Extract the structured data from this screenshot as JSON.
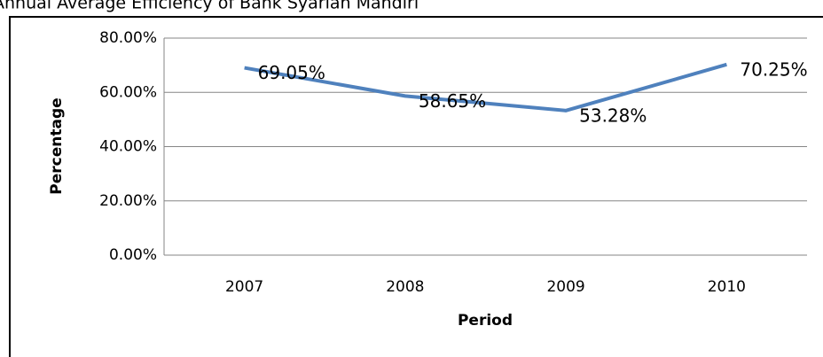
{
  "chart_data": {
    "type": "line",
    "title": "Annual Average Efficiency of Bank Syariah Mandiri",
    "x_label": "Period",
    "y_label": "Percentage",
    "categories": [
      "2007",
      "2008",
      "2009",
      "2010"
    ],
    "series": [
      {
        "color": "#4f81bd",
        "values": [
          69.05,
          58.65,
          53.28,
          70.25
        ],
        "value_labels": [
          "69.05%",
          "58.65%",
          "53.28%",
          "70.25%"
        ]
      }
    ],
    "ylim": [
      0,
      80
    ],
    "yticks": [
      {
        "value": 0,
        "label": "0.00%"
      },
      {
        "value": 20,
        "label": "20.00%"
      },
      {
        "value": 40,
        "label": "40.00%"
      },
      {
        "value": 60,
        "label": "60.00%"
      },
      {
        "value": 80,
        "label": "80.00%"
      }
    ],
    "grid": true
  }
}
